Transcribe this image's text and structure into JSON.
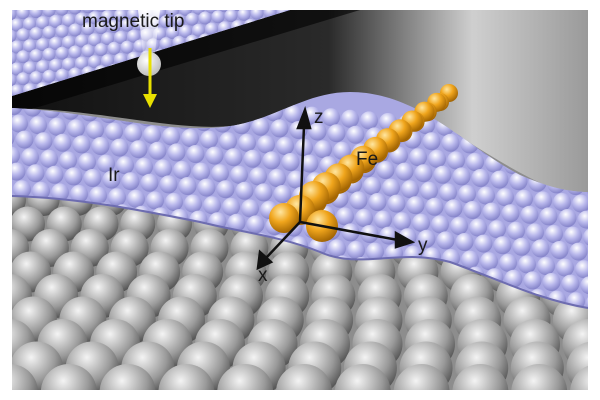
{
  "labels": {
    "tip": "magnetic tip",
    "substrate": "Ir",
    "chain": "Fe",
    "axis_z": "z",
    "axis_y": "y",
    "axis_x": "x"
  }
}
